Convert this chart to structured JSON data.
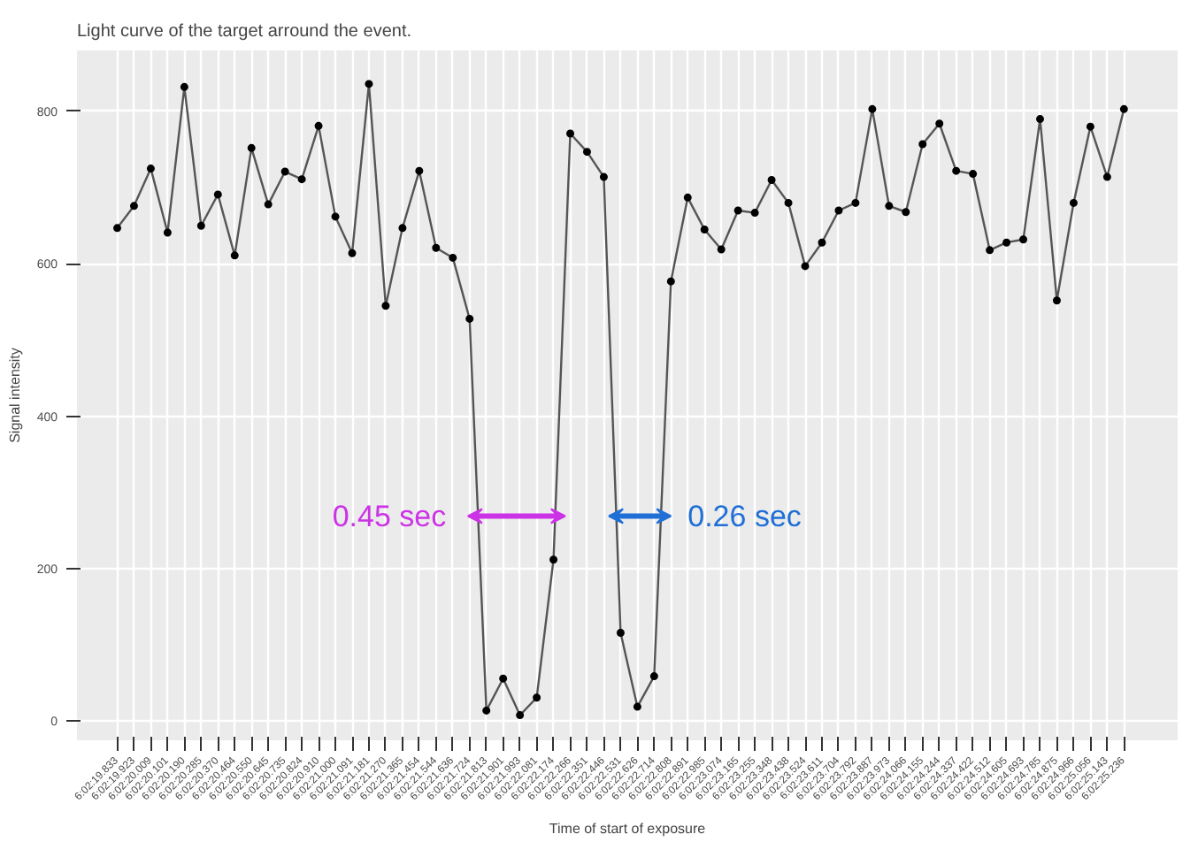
{
  "chart_data": {
    "type": "line",
    "title": "Light curve of the target arround the event.",
    "xlabel": "Time of start of exposure",
    "ylabel": "Signal intensity",
    "categories": [
      "6:02:19.833",
      "6:02:19.923",
      "6:02:20.009",
      "6:02:20.101",
      "6:02:20.190",
      "6:02:20.285",
      "6:02:20.370",
      "6:02:20.464",
      "6:02:20.550",
      "6:02:20.645",
      "6:02:20.735",
      "6:02:20.824",
      "6:02:20.910",
      "6:02:21.000",
      "6:02:21.091",
      "6:02:21.181",
      "6:02:21.270",
      "6:02:21.365",
      "6:02:21.454",
      "6:02:21.544",
      "6:02:21.636",
      "6:02:21.724",
      "6:02:21.813",
      "6:02:21.901",
      "6:02:21.993",
      "6:02:22.081",
      "6:02:22.174",
      "6:02:22.266",
      "6:02:22.351",
      "6:02:22.446",
      "6:02:22.531",
      "6:02:22.626",
      "6:02:22.714",
      "6:02:22.808",
      "6:02:22.891",
      "6:02:22.985",
      "6:02:23.074",
      "6:02:23.165",
      "6:02:23.255",
      "6:02:23.348",
      "6:02:23.438",
      "6:02:23.524",
      "6:02:23.611",
      "6:02:23.704",
      "6:02:23.792",
      "6:02:23.887",
      "6:02:23.973",
      "6:02:24.066",
      "6:02:24.155",
      "6:02:24.244",
      "6:02:24.337",
      "6:02:24.422",
      "6:02:24.512",
      "6:02:24.605",
      "6:02:24.693",
      "6:02:24.785",
      "6:02:24.875",
      "6:02:24.966",
      "6:02:25.056",
      "6:02:25.143",
      "6:02:25.236"
    ],
    "series": [
      {
        "color": "#555555",
        "values": [
          647,
          676,
          725,
          641,
          832,
          650,
          691,
          611,
          752,
          678,
          721,
          711,
          781,
          662,
          614,
          836,
          545,
          647,
          722,
          621,
          608,
          528,
          14,
          56,
          8,
          31,
          212,
          771,
          747,
          714,
          116,
          19,
          59,
          577,
          687,
          645,
          619,
          670,
          667,
          710,
          680,
          597,
          628,
          670,
          680,
          803,
          676,
          668,
          757,
          784,
          722,
          718,
          618,
          628,
          632,
          790,
          552,
          680,
          780,
          714,
          803
        ]
      }
    ],
    "ylim": [
      -25,
      880
    ],
    "yticks": [
      0,
      200,
      400,
      600,
      800
    ],
    "grid": true,
    "marker": "circle",
    "line_style": "solid",
    "annotations": [
      "0.45 sec",
      "0.26 sec"
    ]
  }
}
